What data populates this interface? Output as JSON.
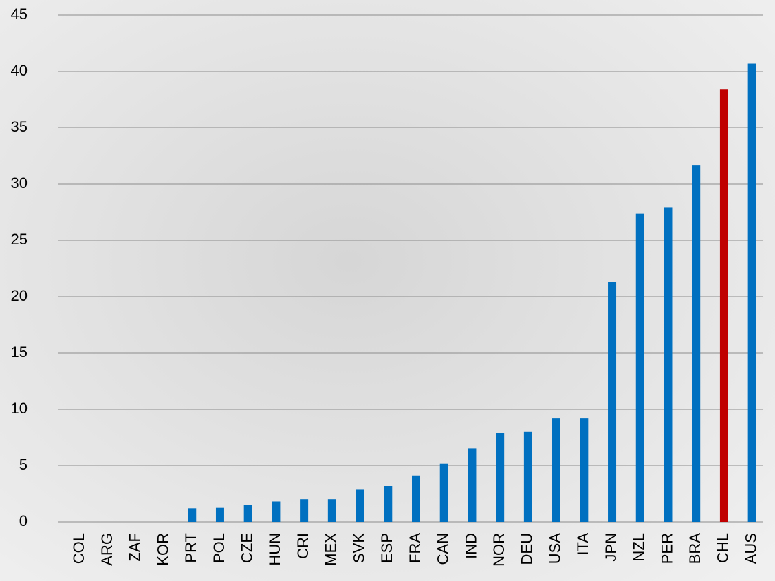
{
  "chart_data": {
    "type": "bar",
    "categories": [
      "COL",
      "ARG",
      "ZAF",
      "KOR",
      "PRT",
      "POL",
      "CZE",
      "HUN",
      "CRI",
      "MEX",
      "SVK",
      "ESP",
      "FRA",
      "CAN",
      "IND",
      "NOR",
      "DEU",
      "USA",
      "ITA",
      "JPN",
      "NZL",
      "PER",
      "BRA",
      "CHL",
      "AUS"
    ],
    "values": [
      0,
      0,
      0,
      0,
      1.2,
      1.3,
      1.5,
      1.8,
      2.0,
      2.0,
      2.9,
      3.2,
      4.1,
      5.2,
      6.5,
      7.9,
      8.0,
      9.2,
      9.2,
      21.3,
      27.4,
      27.9,
      31.7,
      38.4,
      40.7
    ],
    "colors": [
      "#0070c0",
      "#0070c0",
      "#0070c0",
      "#0070c0",
      "#0070c0",
      "#0070c0",
      "#0070c0",
      "#0070c0",
      "#0070c0",
      "#0070c0",
      "#0070c0",
      "#0070c0",
      "#0070c0",
      "#0070c0",
      "#0070c0",
      "#0070c0",
      "#0070c0",
      "#0070c0",
      "#0070c0",
      "#0070c0",
      "#0070c0",
      "#0070c0",
      "#0070c0",
      "#c00000",
      "#0070c0"
    ],
    "ylim": [
      0,
      45
    ],
    "yticks": [
      0,
      5,
      10,
      15,
      20,
      25,
      30,
      35,
      40,
      45
    ],
    "grid": true
  }
}
